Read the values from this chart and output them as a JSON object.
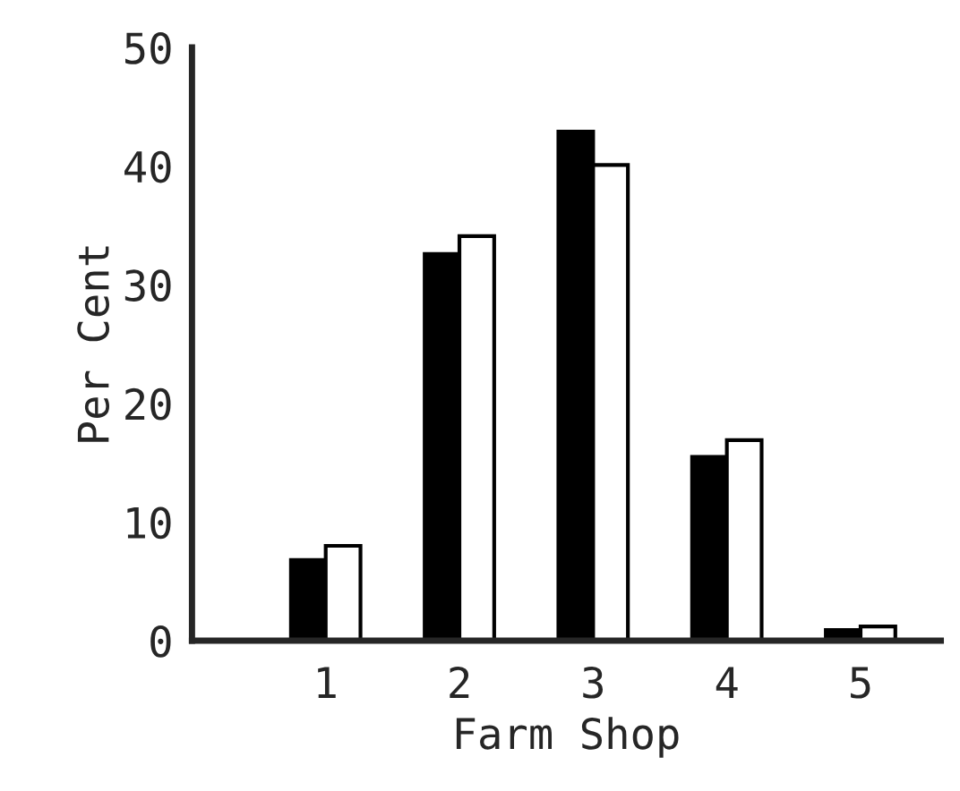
{
  "chart_data": {
    "type": "bar",
    "xlabel": "Farm Shop",
    "ylabel": "Per Cent",
    "categories": [
      "1",
      "2",
      "3",
      "4",
      "5"
    ],
    "series": [
      {
        "color": "#000000",
        "values": [
          6.8,
          32.6,
          42.9,
          15.5,
          0.9
        ]
      },
      {
        "color": "#ffffff",
        "values": [
          8.0,
          34.1,
          40.1,
          16.9,
          1.2
        ]
      }
    ],
    "ylim": [
      0,
      50
    ],
    "yticks": [
      0,
      10,
      20,
      30,
      40,
      50
    ],
    "grid": false
  }
}
